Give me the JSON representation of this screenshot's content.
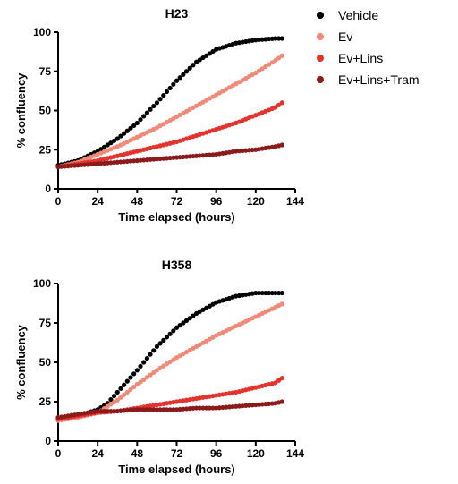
{
  "legend": {
    "placement": "top-right",
    "entries": [
      {
        "name": "Vehicle",
        "color": "#000000"
      },
      {
        "name": "Ev",
        "color": "#ef8a78"
      },
      {
        "name": "Ev+Lins",
        "color": "#e4322d"
      },
      {
        "name": "Ev+Lins+Tram",
        "color": "#8b1a1a"
      }
    ]
  },
  "chart_data": [
    {
      "type": "scatter",
      "title": "H23",
      "xlabel": "Time elapsed (hours)",
      "ylabel": "% confluency",
      "xlim": [
        0,
        144
      ],
      "ylim": [
        0,
        100
      ],
      "xticks": [
        0,
        24,
        48,
        72,
        96,
        120,
        144
      ],
      "yticks": [
        0,
        25,
        50,
        75,
        100
      ],
      "grid": false,
      "series": [
        {
          "name": "Vehicle",
          "color": "#000000",
          "x": [
            0,
            12,
            24,
            36,
            48,
            60,
            72,
            84,
            96,
            108,
            120,
            132,
            136
          ],
          "y": [
            15,
            18,
            24,
            32,
            42,
            55,
            69,
            81,
            89,
            93,
            95,
            96,
            96
          ]
        },
        {
          "name": "Ev",
          "color": "#ef8a78",
          "x": [
            0,
            12,
            24,
            36,
            48,
            60,
            72,
            84,
            96,
            108,
            120,
            132,
            136
          ],
          "y": [
            14,
            17,
            22,
            27,
            33,
            39,
            46,
            53,
            60,
            67,
            74,
            82,
            85
          ]
        },
        {
          "name": "Ev+Lins",
          "color": "#e4322d",
          "x": [
            0,
            12,
            24,
            36,
            48,
            60,
            72,
            84,
            96,
            108,
            120,
            132,
            136
          ],
          "y": [
            14,
            16,
            18,
            21,
            24,
            27,
            30,
            34,
            38,
            42,
            47,
            52,
            55
          ]
        },
        {
          "name": "Ev+Lins+Tram",
          "color": "#8b1a1a",
          "x": [
            0,
            12,
            24,
            36,
            48,
            60,
            72,
            84,
            96,
            108,
            120,
            132,
            136
          ],
          "y": [
            14,
            15,
            16,
            17,
            18,
            19,
            20,
            21,
            22,
            24,
            25,
            27,
            28
          ]
        }
      ]
    },
    {
      "type": "scatter",
      "title": "H358",
      "xlabel": "Time elapsed (hours)",
      "ylabel": "% confluency",
      "xlim": [
        0,
        144
      ],
      "ylim": [
        0,
        100
      ],
      "xticks": [
        0,
        24,
        48,
        72,
        96,
        120,
        144
      ],
      "yticks": [
        0,
        25,
        50,
        75,
        100
      ],
      "grid": false,
      "series": [
        {
          "name": "Vehicle",
          "color": "#000000",
          "x": [
            0,
            12,
            24,
            30,
            36,
            48,
            60,
            72,
            84,
            96,
            108,
            120,
            132,
            136
          ],
          "y": [
            14,
            16,
            20,
            24,
            31,
            45,
            60,
            72,
            81,
            88,
            92,
            94,
            94,
            94
          ]
        },
        {
          "name": "Ev",
          "color": "#ef8a78",
          "x": [
            0,
            12,
            24,
            30,
            36,
            48,
            60,
            72,
            84,
            96,
            108,
            120,
            132,
            136
          ],
          "y": [
            13,
            15,
            18,
            22,
            26,
            36,
            45,
            53,
            60,
            67,
            73,
            79,
            85,
            87
          ]
        },
        {
          "name": "Ev+Lins",
          "color": "#e4322d",
          "x": [
            0,
            12,
            24,
            36,
            48,
            60,
            72,
            84,
            96,
            108,
            120,
            132,
            136
          ],
          "y": [
            14,
            16,
            18,
            19,
            21,
            23,
            25,
            27,
            29,
            31,
            34,
            37,
            40
          ]
        },
        {
          "name": "Ev+Lins+Tram",
          "color": "#8b1a1a",
          "x": [
            0,
            12,
            24,
            36,
            48,
            60,
            72,
            84,
            96,
            108,
            120,
            132,
            136
          ],
          "y": [
            15,
            17,
            19,
            19,
            20,
            20,
            20,
            21,
            21,
            22,
            23,
            24,
            25
          ]
        }
      ]
    }
  ]
}
